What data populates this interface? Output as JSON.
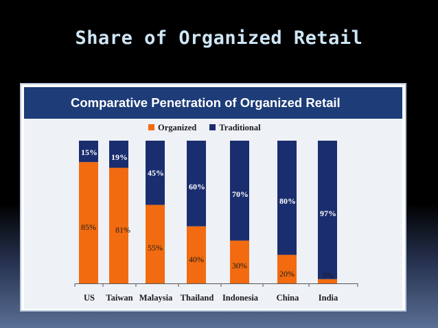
{
  "slide": {
    "title": "Share of Organized Retail"
  },
  "chart_data": {
    "type": "bar",
    "stacked": true,
    "title": "Comparative Penetration of Organized Retail",
    "categories": [
      "US",
      "Taiwan",
      "Malaysia",
      "Thailand",
      "Indonesia",
      "China",
      "India"
    ],
    "series": [
      {
        "name": "Organized",
        "values": [
          85,
          81,
          55,
          40,
          30,
          20,
          3
        ],
        "labels": [
          "85%",
          "81%",
          "55%",
          "40%",
          "30%",
          "20%",
          "3%"
        ],
        "color": "#f26b10"
      },
      {
        "name": "Traditional",
        "values": [
          15,
          19,
          45,
          60,
          70,
          80,
          97
        ],
        "labels": [
          "15%",
          "19%",
          "45%",
          "60%",
          "70%",
          "80%",
          "97%"
        ],
        "color": "#1a2d6e"
      }
    ],
    "ylim": [
      0,
      100
    ],
    "legend": "top-center",
    "grid": false
  }
}
